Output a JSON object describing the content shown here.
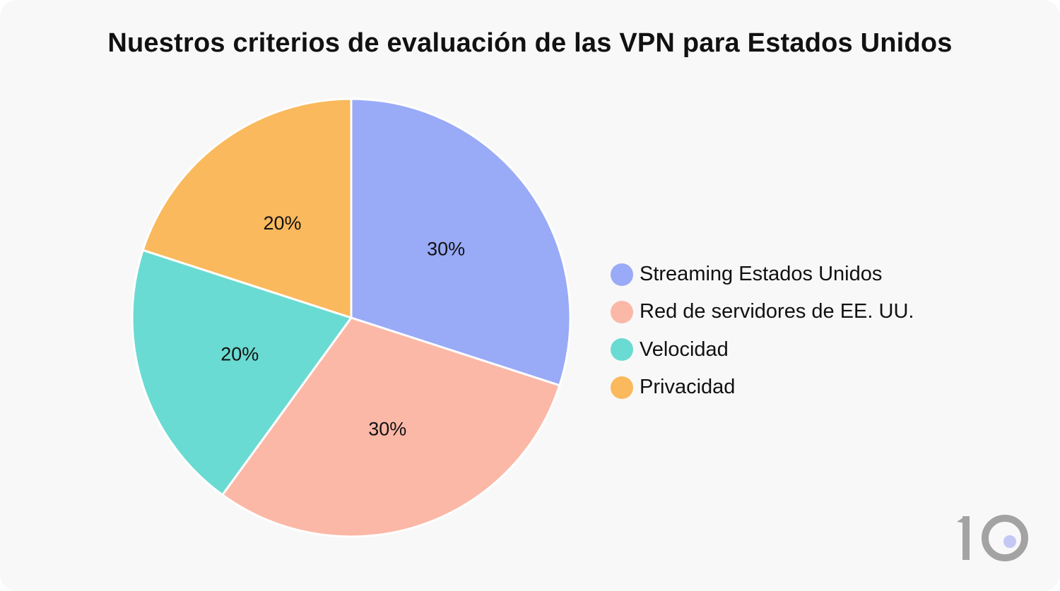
{
  "chart_data": {
    "type": "pie",
    "title": "Nuestros criterios de evaluación de las VPN para Estados Unidos",
    "slices": [
      {
        "label": "Streaming Estados Unidos",
        "value": 30,
        "display": "30%",
        "color": "#99aaf7"
      },
      {
        "label": "Red de servidores de EE. UU.",
        "value": 30,
        "display": "30%",
        "color": "#fbb8a7"
      },
      {
        "label": "Velocidad",
        "value": 20,
        "display": "20%",
        "color": "#6adbd2"
      },
      {
        "label": "Privacidad",
        "value": 20,
        "display": "20%",
        "color": "#fab95c"
      }
    ],
    "legend_position": "right"
  },
  "colors": {
    "background": "#f8f8f8",
    "slice_border": "#ffffff",
    "logo_gray": "#a3a3a3",
    "logo_dot": "#c3c8f5"
  }
}
